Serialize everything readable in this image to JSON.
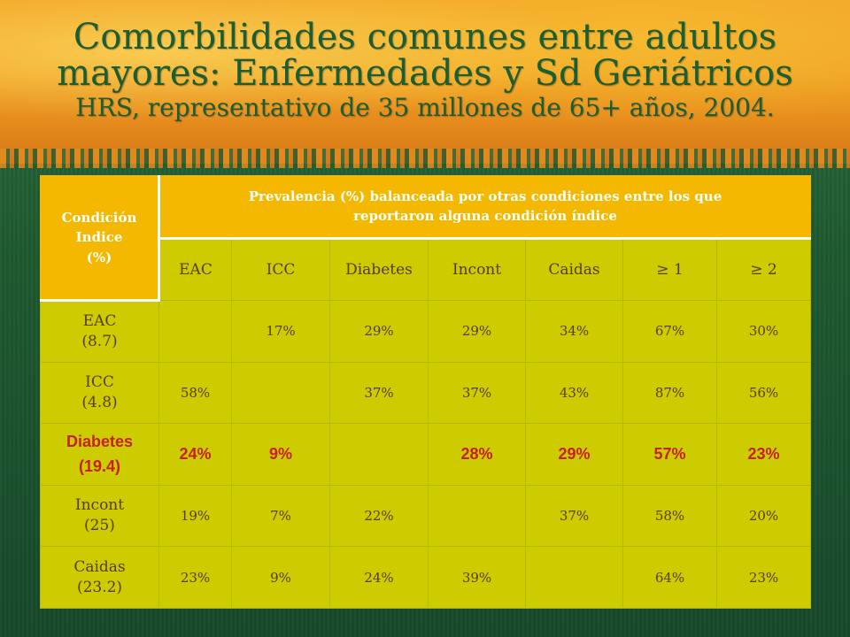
{
  "slide": {
    "title_line1": "Comorbilidades comunes entre adultos",
    "title_line2": "mayores: Enfermedades y Sd Geriátricos",
    "subtitle": "HRS, representativo  de 35 millones de 65+ años, 2004."
  },
  "table": {
    "corner_line1": "Condición",
    "corner_line2": "Indice",
    "corner_line3": "(%)",
    "span_line1": "Prevalencia (%) balanceada por otras condiciones entre los que",
    "span_line2": "reportaron alguna condición índice",
    "columns": [
      "EAC",
      "ICC",
      "Diabetes",
      "Incont",
      "Caidas",
      "≥ 1",
      "≥ 2"
    ],
    "rows": [
      {
        "name": "EAC",
        "pct": "(8.7)",
        "cells": [
          "",
          "17%",
          "29%",
          "29%",
          "34%",
          "67%",
          "30%"
        ]
      },
      {
        "name": "ICC",
        "pct": "(4.8)",
        "cells": [
          "58%",
          "",
          "37%",
          "37%",
          "43%",
          "87%",
          "56%"
        ]
      },
      {
        "name": "Diabetes",
        "pct": "(19.4)",
        "cells": [
          "24%",
          "9%",
          "",
          "28%",
          "29%",
          "57%",
          "23%"
        ]
      },
      {
        "name": "Incont",
        "pct": "(25)",
        "cells": [
          "19%",
          "7%",
          "22%",
          "",
          "37%",
          "58%",
          "20%"
        ]
      },
      {
        "name": "Caidas",
        "pct": "(23.2)",
        "cells": [
          "23%",
          "9%",
          "24%",
          "39%",
          "",
          "64%",
          "23%"
        ]
      }
    ]
  },
  "colors": {
    "header_fill": "#f5b800",
    "cell_fill": "#cccc00",
    "title_text": "#1b5e33",
    "highlight_text": "#c62020"
  }
}
